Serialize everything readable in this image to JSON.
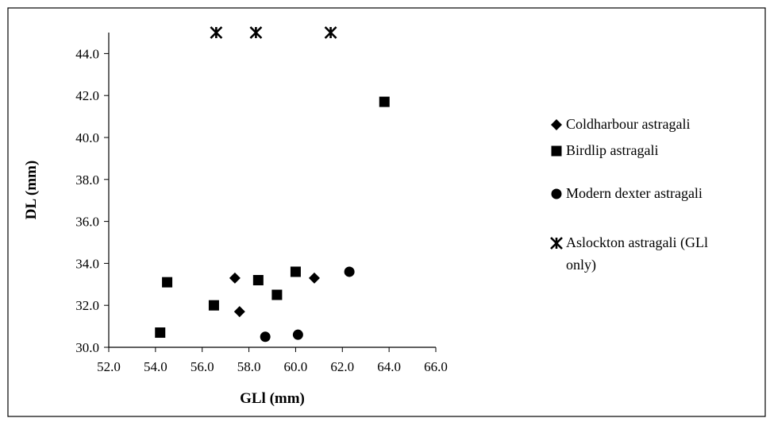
{
  "chart_data": {
    "type": "scatter",
    "title": "",
    "xlabel": "GLl (mm)",
    "ylabel": "DL (mm)",
    "xlim": [
      52,
      66
    ],
    "ylim": [
      30,
      45
    ],
    "x_ticks": [
      "52.0",
      "54.0",
      "56.0",
      "58.0",
      "60.0",
      "62.0",
      "64.0",
      "66.0"
    ],
    "y_ticks": [
      "30.0",
      "32.0",
      "34.0",
      "36.0",
      "38.0",
      "40.0",
      "42.0",
      "44.0"
    ],
    "grid": false,
    "legend_position": "right",
    "series": [
      {
        "name": "Coldharbour astragali",
        "marker": "diamond",
        "color": "#000000",
        "points": [
          [
            57.4,
            33.3
          ],
          [
            57.6,
            31.7
          ],
          [
            60.8,
            33.3
          ]
        ]
      },
      {
        "name": "Birdlip astragali",
        "marker": "square",
        "color": "#000000",
        "points": [
          [
            54.2,
            30.7
          ],
          [
            54.5,
            33.1
          ],
          [
            56.5,
            32.0
          ],
          [
            58.4,
            33.2
          ],
          [
            59.2,
            32.5
          ],
          [
            60.0,
            33.6
          ],
          [
            63.8,
            41.7
          ]
        ]
      },
      {
        "name": "Modern dexter astragali",
        "marker": "circle",
        "color": "#000000",
        "points": [
          [
            58.7,
            30.5
          ],
          [
            60.1,
            30.6
          ],
          [
            62.3,
            33.6
          ]
        ]
      },
      {
        "name": "Aslockton astragali (GLl only)",
        "name_lines": [
          "Aslockton astragali (GLl",
          "only)"
        ],
        "marker": "asterisk",
        "color": "#000000",
        "points": [
          [
            56.6,
            45.0
          ],
          [
            58.3,
            45.0
          ],
          [
            61.5,
            45.0
          ]
        ]
      }
    ]
  }
}
